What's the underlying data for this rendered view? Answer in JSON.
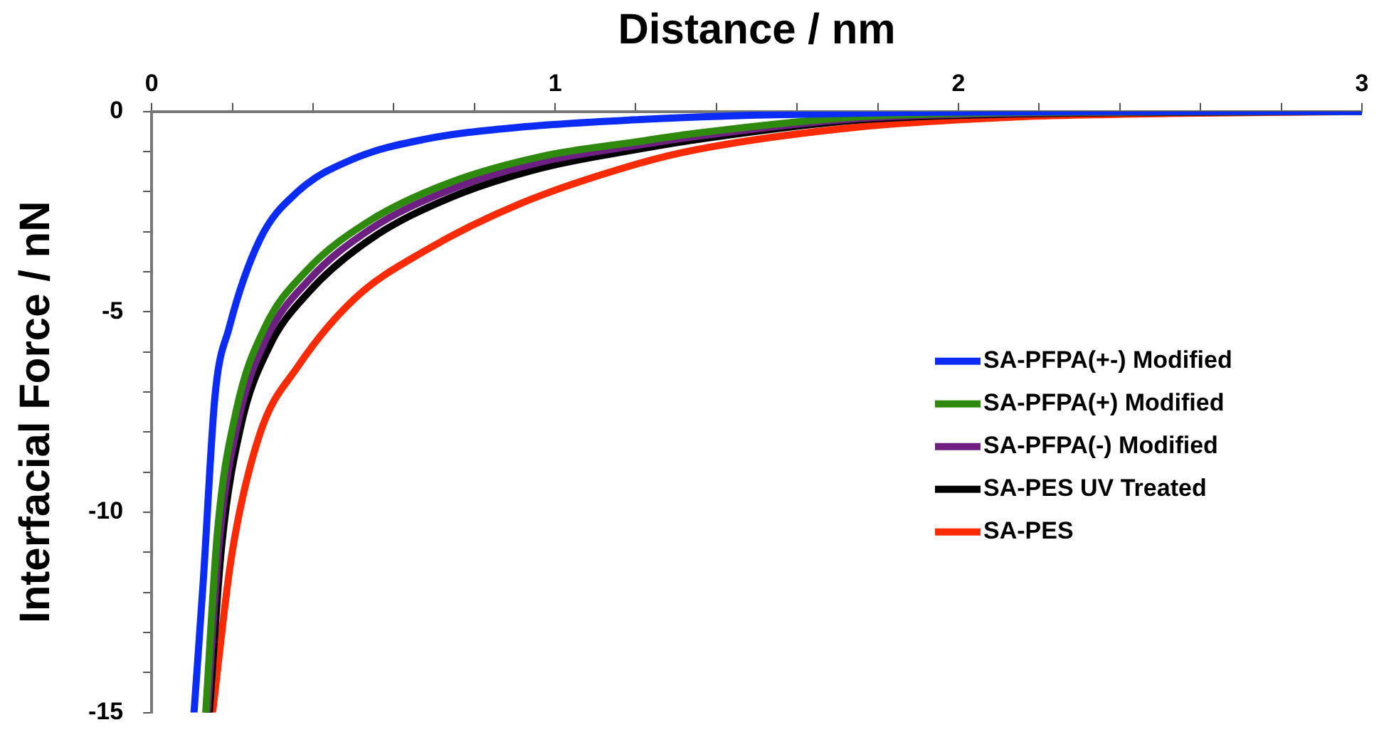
{
  "chart_data": {
    "type": "line",
    "xlabel": "Distance / nm",
    "ylabel": "Interfacial Force / nN",
    "xlim": [
      0,
      3
    ],
    "ylim": [
      -15,
      0
    ],
    "xticks": [
      0,
      {
        "value": 0.2,
        "label": null
      },
      {
        "value": 0.4,
        "label": null
      },
      {
        "value": 0.6,
        "label": null
      },
      {
        "value": 0.8,
        "label": null
      },
      1,
      {
        "value": 1.2,
        "label": null
      },
      {
        "value": 1.4,
        "label": null
      },
      {
        "value": 1.6,
        "label": null
      },
      {
        "value": 1.8,
        "label": null
      },
      2,
      {
        "value": 2.2,
        "label": null
      },
      {
        "value": 2.4,
        "label": null
      },
      {
        "value": 2.6,
        "label": null
      },
      {
        "value": 2.8,
        "label": null
      },
      3
    ],
    "yticks": [
      0,
      {
        "value": -1,
        "label": null
      },
      {
        "value": -2,
        "label": null
      },
      {
        "value": -3,
        "label": null
      },
      {
        "value": -4,
        "label": null
      },
      -5,
      {
        "value": -6,
        "label": null
      },
      {
        "value": -7,
        "label": null
      },
      {
        "value": -8,
        "label": null
      },
      {
        "value": -9,
        "label": null
      },
      -10,
      {
        "value": -11,
        "label": null
      },
      {
        "value": -12,
        "label": null
      },
      {
        "value": -13,
        "label": null
      },
      {
        "value": -14,
        "label": null
      },
      -15
    ],
    "grid": false,
    "legend": "right",
    "marker": "none",
    "line_style": "solid",
    "series": [
      {
        "name": "SA-PFPA(+-) Modified",
        "color": "#0a2cf5",
        "x": [
          0.105,
          0.128,
          0.157,
          0.192,
          0.268,
          0.362,
          0.503,
          0.678,
          0.913,
          1.21,
          1.5,
          1.87,
          2.3,
          3
        ],
        "values": [
          -15,
          -11.7,
          -7.1,
          -5.4,
          -3.2,
          -2.0,
          -1.17,
          -0.69,
          -0.39,
          -0.2,
          -0.09,
          -0.02,
          0,
          0
        ]
      },
      {
        "name": "SA-PFPA(+) Modified",
        "color": "#2e8a0c",
        "x": [
          0.134,
          0.163,
          0.21,
          0.28,
          0.386,
          0.538,
          0.737,
          0.971,
          1.206,
          1.35,
          1.74,
          2.1,
          2.5,
          3
        ],
        "values": [
          -15,
          -10.5,
          -7.45,
          -5.4,
          -3.95,
          -2.74,
          -1.78,
          -1.11,
          -0.75,
          -0.54,
          -0.14,
          -0.03,
          -0.01,
          0
        ]
      },
      {
        "name": "SA-PFPA(-) Modified",
        "color": "#6e1f82",
        "x": [
          0.138,
          0.168,
          0.215,
          0.285,
          0.39,
          0.54,
          0.74,
          0.97,
          1.2,
          1.35,
          1.74,
          2.1,
          2.5,
          3
        ],
        "values": [
          -15,
          -10.7,
          -7.7,
          -5.65,
          -4.2,
          -2.95,
          -1.95,
          -1.25,
          -0.85,
          -0.62,
          -0.18,
          -0.05,
          -0.01,
          0
        ]
      },
      {
        "name": "SA-PES UV Treated",
        "color": "#000000",
        "x": [
          0.143,
          0.173,
          0.22,
          0.29,
          0.39,
          0.54,
          0.74,
          0.97,
          1.2,
          1.35,
          1.74,
          2.1,
          2.5,
          3
        ],
        "values": [
          -15,
          -10.9,
          -7.9,
          -5.9,
          -4.5,
          -3.2,
          -2.15,
          -1.4,
          -0.95,
          -0.7,
          -0.22,
          -0.07,
          -0.02,
          0
        ]
      },
      {
        "name": "SA-PES",
        "color": "#fa2a05",
        "x": [
          0.151,
          0.198,
          0.268,
          0.362,
          0.503,
          0.678,
          0.913,
          1.206,
          1.35,
          1.74,
          2.13,
          2.52,
          3
        ],
        "values": [
          -15,
          -11.1,
          -8.05,
          -6.37,
          -4.67,
          -3.47,
          -2.3,
          -1.3,
          -0.95,
          -0.4,
          -0.14,
          -0.05,
          0
        ]
      }
    ]
  }
}
